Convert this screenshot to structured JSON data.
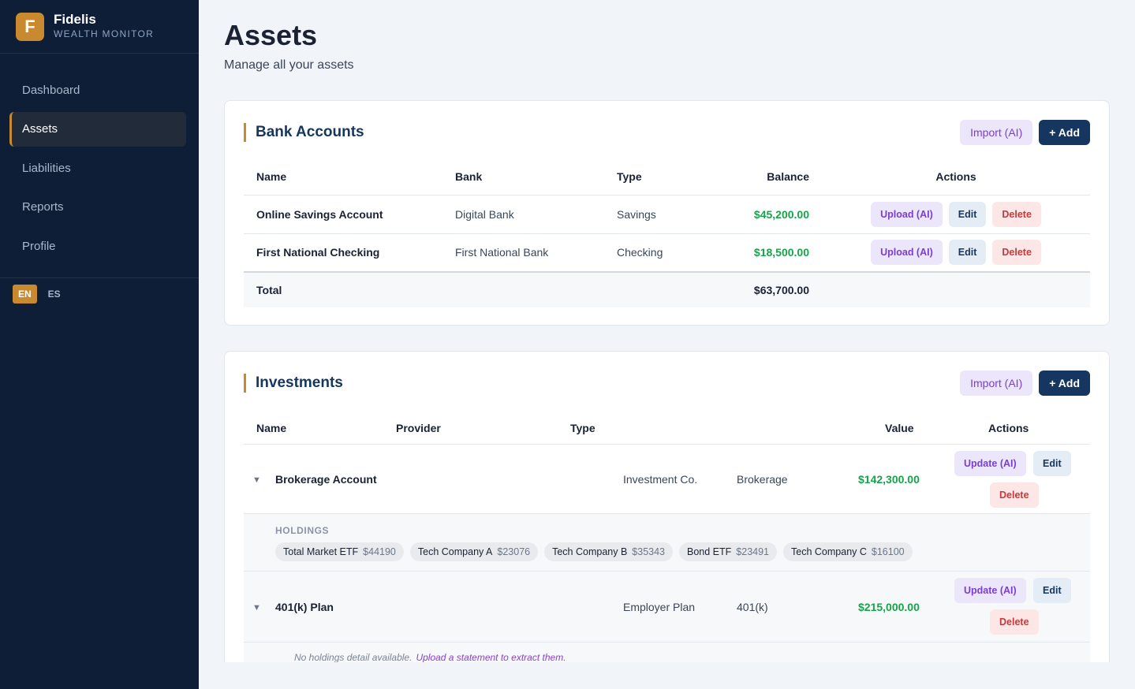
{
  "brand": {
    "logo_letter": "F",
    "name": "Fidelis",
    "subtitle": "WEALTH MONITOR"
  },
  "nav": {
    "items": [
      {
        "label": "Dashboard"
      },
      {
        "label": "Assets",
        "active": true
      },
      {
        "label": "Liabilities"
      },
      {
        "label": "Reports"
      },
      {
        "label": "Profile"
      }
    ]
  },
  "lang": {
    "en": "EN",
    "es": "ES",
    "active": "EN"
  },
  "page": {
    "title": "Assets",
    "subtitle": "Manage all your assets"
  },
  "bank": {
    "title": "Bank Accounts",
    "import_label": "Import (AI)",
    "add_label": "+ Add",
    "columns": {
      "name": "Name",
      "bank": "Bank",
      "type": "Type",
      "balance": "Balance",
      "actions": "Actions"
    },
    "rows": [
      {
        "name": "Online Savings Account",
        "bank": "Digital Bank",
        "type": "Savings",
        "balance": "$45,200.00",
        "upload": "Upload (AI)",
        "edit": "Edit",
        "delete": "Delete"
      },
      {
        "name": "First National Checking",
        "bank": "First National Bank",
        "type": "Checking",
        "balance": "$18,500.00",
        "upload": "Upload (AI)",
        "edit": "Edit",
        "delete": "Delete"
      }
    ],
    "total": {
      "label": "Total",
      "value": "$63,700.00"
    }
  },
  "investments": {
    "title": "Investments",
    "import_label": "Import (AI)",
    "add_label": "+ Add",
    "columns": {
      "name": "Name",
      "provider": "Provider",
      "type": "Type",
      "value": "Value",
      "actions": "Actions"
    },
    "rows": [
      {
        "name": "Brokerage Account",
        "provider": "Investment Co.",
        "type": "Brokerage",
        "value": "$142,300.00",
        "update": "Update (AI)",
        "edit": "Edit",
        "delete": "Delete",
        "holdings_label": "HOLDINGS",
        "holdings": [
          {
            "name": "Total Market ETF",
            "value": "$44190"
          },
          {
            "name": "Tech Company A",
            "value": "$23076"
          },
          {
            "name": "Tech Company B",
            "value": "$35343"
          },
          {
            "name": "Bond ETF",
            "value": "$23491"
          },
          {
            "name": "Tech Company C",
            "value": "$16100"
          }
        ]
      },
      {
        "name": "401(k) Plan",
        "provider": "Employer Plan",
        "type": "401(k)",
        "value": "$215,000.00",
        "update": "Update (AI)",
        "edit": "Edit",
        "delete": "Delete",
        "no_holdings": "No holdings detail available.",
        "upload_link": "Upload a statement to extract them."
      }
    ]
  },
  "colors": {
    "sidebar": "#0f1e37",
    "accent": "#c8892f",
    "primary": "#15365e",
    "positive": "#16a34a",
    "ai": "#7a3fd0",
    "danger": "#c33b3b"
  },
  "icons": {
    "expand": "chevron-down-icon"
  }
}
